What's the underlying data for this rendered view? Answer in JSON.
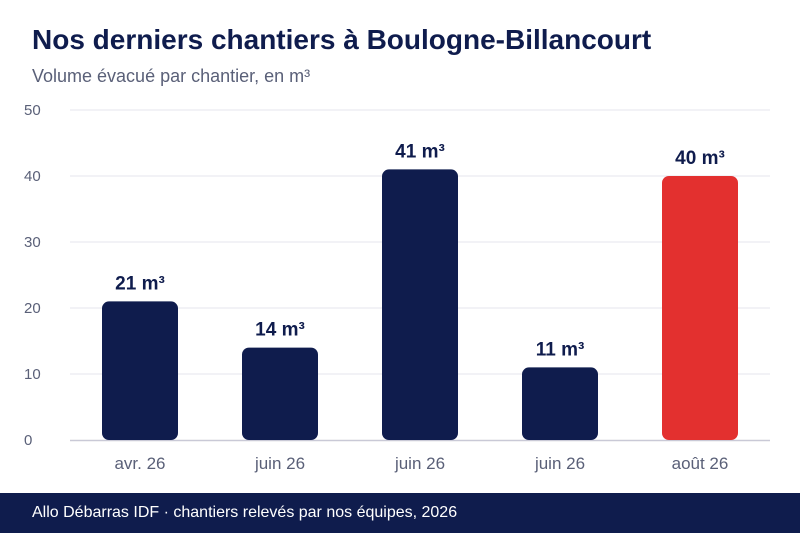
{
  "header": {
    "title": "Nos derniers chantiers à Boulogne-Billancourt",
    "subtitle": "Volume évacué par chantier, en m³"
  },
  "footer": {
    "source": "Allo Débarras IDF · chantiers relevés par nos équipes, 2026"
  },
  "colors": {
    "bar_default": "#0f1c4d",
    "bar_highlight": "#e3302f",
    "grid": "#e6e6ee",
    "axis": "#c9c9d6",
    "tick_text": "#5a6078",
    "label_text": "#0f1c4d",
    "footer_bg": "#0f1c4d"
  },
  "chart_data": {
    "type": "bar",
    "title": "Nos derniers chantiers à Boulogne-Billancourt",
    "subtitle": "Volume évacué par chantier, en m³",
    "xlabel": "",
    "ylabel": "",
    "categories": [
      "avr. 26",
      "juin 26",
      "juin 26",
      "juin 26",
      "août 26"
    ],
    "values": [
      21,
      14,
      41,
      11,
      40
    ],
    "data_labels": [
      "21 m³",
      "14 m³",
      "41 m³",
      "11 m³",
      "40 m³"
    ],
    "highlight_index": 4,
    "ylim": [
      0,
      50
    ],
    "yticks": [
      0,
      10,
      20,
      30,
      40,
      50
    ],
    "grid": true,
    "legend": "none"
  }
}
